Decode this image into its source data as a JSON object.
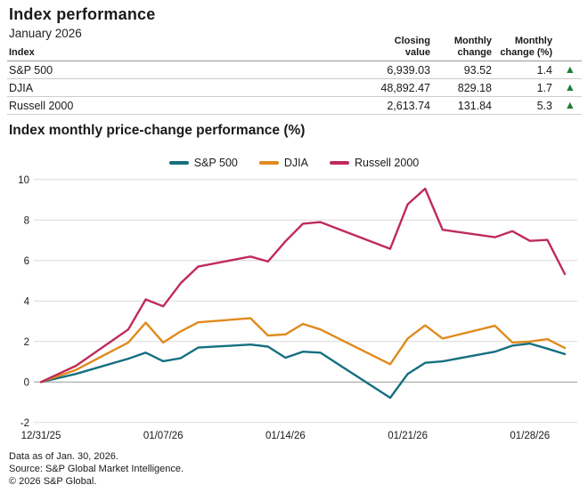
{
  "header": {
    "title": "Index performance",
    "subtitle": "January 2026"
  },
  "table": {
    "col_headers": {
      "index": "Index",
      "closing_l1": "Closing",
      "closing_l2": "value",
      "monthly_l1": "Monthly",
      "monthly_l2": "change",
      "monthly_pct_l1": "Monthly",
      "monthly_pct_l2": "change (%)"
    },
    "rows": [
      {
        "index": "S&P 500",
        "closing": "6,939.03",
        "change": "93.52",
        "change_pct": "1.4",
        "direction": "up"
      },
      {
        "index": "DJIA",
        "closing": "48,892.47",
        "change": "829.18",
        "change_pct": "1.7",
        "direction": "up"
      },
      {
        "index": "Russell 2000",
        "closing": "2,613.74",
        "change": "131.84",
        "change_pct": "5.3",
        "direction": "up"
      }
    ],
    "up_arrow_glyph": "▲",
    "up_color": "#1e7e38"
  },
  "chart": {
    "title": "Index monthly price-change performance (%)"
  },
  "chart_data": {
    "type": "line",
    "title": "Index monthly price-change performance (%)",
    "x_dates": [
      "12/31/25",
      "01/02/26",
      "01/05/26",
      "01/06/26",
      "01/07/26",
      "01/08/26",
      "01/09/26",
      "01/12/26",
      "01/13/26",
      "01/14/26",
      "01/15/26",
      "01/16/26",
      "01/20/26",
      "01/21/26",
      "01/22/26",
      "01/23/26",
      "01/26/26",
      "01/27/26",
      "01/28/26",
      "01/29/26",
      "01/30/26"
    ],
    "day_offsets": [
      0,
      2,
      5,
      6,
      7,
      8,
      9,
      12,
      13,
      14,
      15,
      16,
      20,
      21,
      22,
      23,
      26,
      27,
      28,
      29,
      30
    ],
    "x_tick_labels": [
      {
        "label": "12/31/25",
        "day_offset": 0
      },
      {
        "label": "01/07/26",
        "day_offset": 7
      },
      {
        "label": "01/14/26",
        "day_offset": 14
      },
      {
        "label": "01/21/26",
        "day_offset": 21
      },
      {
        "label": "01/28/26",
        "day_offset": 28
      }
    ],
    "ylim": [
      -2,
      10
    ],
    "ytick_step": 2,
    "grid": "horizontal",
    "legend_position": "top-center",
    "series": [
      {
        "name": "S&P 500",
        "color": "#156f80",
        "values": [
          0,
          0.4,
          1.15,
          1.45,
          1.03,
          1.18,
          1.7,
          1.85,
          1.75,
          1.2,
          1.5,
          1.45,
          -0.78,
          0.4,
          0.95,
          1.02,
          1.5,
          1.8,
          1.9,
          1.65,
          1.38
        ]
      },
      {
        "name": "DJIA",
        "color": "#e08a1e",
        "values": [
          0,
          0.6,
          1.95,
          2.93,
          1.95,
          2.5,
          2.95,
          3.15,
          2.3,
          2.35,
          2.87,
          2.6,
          0.88,
          2.15,
          2.8,
          2.15,
          2.78,
          1.95,
          2.0,
          2.12,
          1.68
        ]
      },
      {
        "name": "Russell 2000",
        "color": "#c02a5a",
        "values": [
          0,
          0.8,
          2.6,
          4.08,
          3.74,
          4.88,
          5.7,
          6.2,
          5.95,
          6.95,
          7.82,
          7.9,
          6.58,
          8.78,
          9.55,
          7.52,
          7.15,
          7.45,
          6.97,
          7.02,
          5.33
        ]
      }
    ],
    "axis_colors": {
      "grid": "#d9d9d9",
      "zero_line": "#999999",
      "tick_text": "#1a1a1a"
    }
  },
  "footer": {
    "lines": [
      "Data as of Jan. 30, 2026.",
      "Source: S&P Global Market Intelligence.",
      "© 2026 S&P Global."
    ]
  }
}
